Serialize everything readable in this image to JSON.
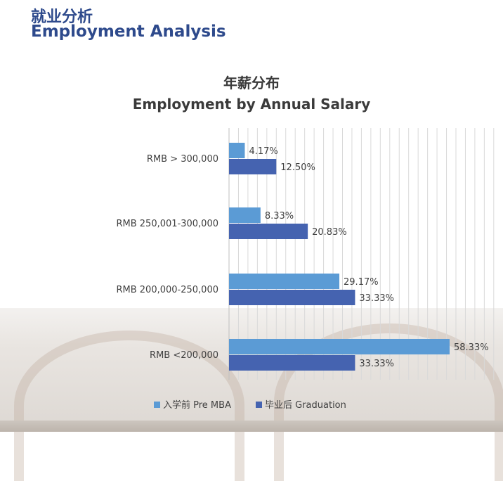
{
  "header": {
    "title_cn": "就业分析",
    "title_en": "Employment Analysis"
  },
  "chart_data": {
    "type": "bar",
    "orientation": "horizontal",
    "title": "年薪分布",
    "subtitle": "Employment by Annual Salary",
    "categories": [
      "RMB > 300,000",
      "RMB 250,001-300,000",
      "RMB 200,000-250,000",
      "RMB <200,000"
    ],
    "series": [
      {
        "name": "入学前 Pre MBA",
        "values": [
          4.17,
          8.33,
          29.17,
          58.33
        ],
        "labels": [
          "4.17%",
          "8.33%",
          "29.17%",
          "58.33%"
        ],
        "color": "#5b9bd5"
      },
      {
        "name": "毕业后 Graduation",
        "values": [
          12.5,
          20.83,
          33.33,
          33.33
        ],
        "labels": [
          "12.50%",
          "20.83%",
          "33.33%",
          "33.33%"
        ],
        "color": "#4563b0"
      }
    ],
    "xlim": [
      0,
      70
    ],
    "grid": true,
    "legend": "bottom"
  }
}
